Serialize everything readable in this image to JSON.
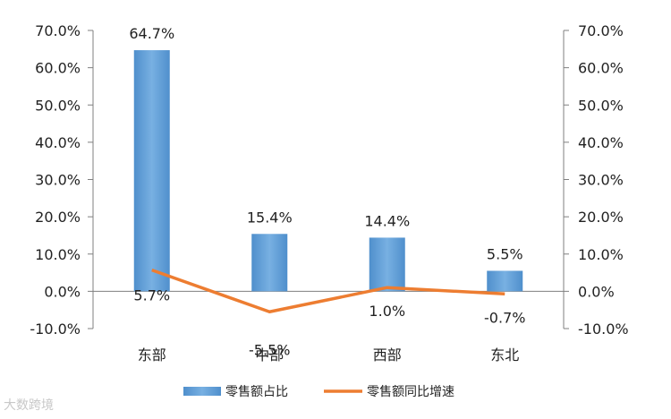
{
  "chart_data": {
    "type": "bar",
    "categories": [
      "东部",
      "中部",
      "西部",
      "东北"
    ],
    "series": [
      {
        "name": "零售额占比",
        "kind": "bar",
        "axis": "left",
        "color": "#5b9bd5",
        "values": [
          64.7,
          15.4,
          14.4,
          5.5
        ],
        "labels": [
          "64.7%",
          "15.4%",
          "14.4%",
          "5.5%"
        ]
      },
      {
        "name": "零售额同比增速",
        "kind": "line",
        "axis": "right",
        "color": "#ed7d31",
        "values": [
          5.7,
          -5.5,
          1.0,
          -0.7
        ],
        "labels": [
          "5.7%",
          "-5.5%",
          "1.0%",
          "-0.7%"
        ]
      }
    ],
    "ylim": [
      -10,
      70
    ],
    "y_ticks": [
      "-10.0%",
      "0.0%",
      "10.0%",
      "20.0%",
      "30.0%",
      "40.0%",
      "50.0%",
      "60.0%",
      "70.0%"
    ],
    "y2_ticks": [
      "-10.0%",
      "0.0%",
      "10.0%",
      "20.0%",
      "30.0%",
      "40.0%",
      "50.0%",
      "60.0%",
      "70.0%"
    ],
    "grid": false,
    "legend": "bottom",
    "title": "",
    "xlabel": "",
    "ylabel": ""
  },
  "watermark": "大数跨境"
}
